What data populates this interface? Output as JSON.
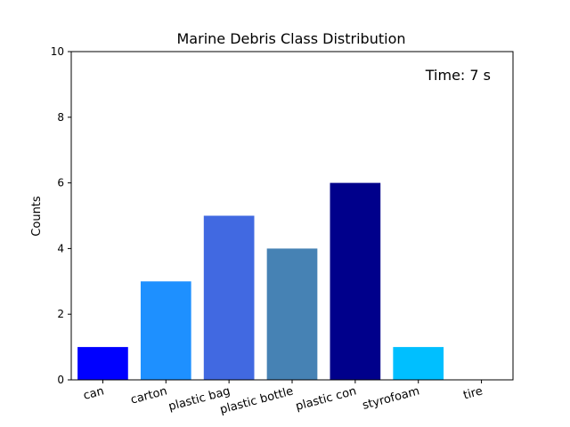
{
  "chart_data": {
    "type": "bar",
    "title": "Marine Debris Class Distribution",
    "xlabel": "",
    "ylabel": "Counts",
    "annotation": "Time: 7 s",
    "categories": [
      "can",
      "carton",
      "plastic bag",
      "plastic bottle",
      "plastic con",
      "styrofoam",
      "tire"
    ],
    "values": [
      1,
      3,
      5,
      4,
      6,
      1,
      0
    ],
    "colors": [
      "#0000ff",
      "#1e90ff",
      "#4169e1",
      "#4682b4",
      "#00008b",
      "#00bfff",
      "#87ceeb"
    ],
    "ylim": [
      0,
      10
    ],
    "yticks": [
      0,
      2,
      4,
      6,
      8,
      10
    ],
    "grid": false,
    "legend": false
  }
}
